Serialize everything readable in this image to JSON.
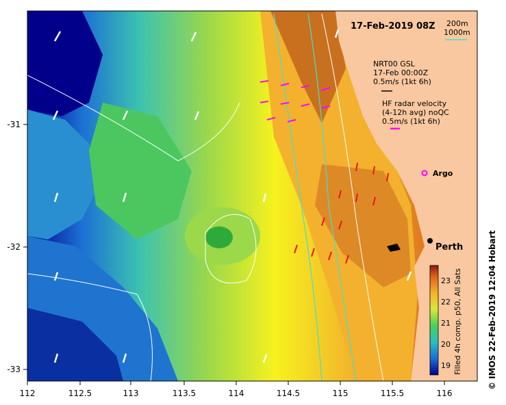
{
  "map": {
    "date_title": "17-Feb-2019 08Z",
    "x_ticks": [
      "112",
      "112.5",
      "113",
      "113.5",
      "114",
      "114.5",
      "115",
      "115.5",
      "116"
    ],
    "y_ticks": [
      "-31",
      "-32",
      "-33"
    ],
    "legend": {
      "depth_200": "200m",
      "depth_1000": "1000m",
      "gsl_line1": "NRT00 GSL",
      "gsl_line2": "17-Feb 00:00Z",
      "gsl_line3": "0.5m/s (1kt 6h)",
      "hf_line1": "HF radar velocity",
      "hf_line2": "(4-12h avg) noQC",
      "hf_line3": "0.5m/s (1kt 6h)",
      "argo_label": "Argo",
      "city_label": "Perth"
    },
    "colorbar": {
      "ticks": [
        "23",
        "22",
        "21",
        "20",
        "19"
      ],
      "label": "Filled 4h comp. p50, All Sats"
    },
    "credit": "© IMOS 22-Feb-2019 12:04 Hobart",
    "colors": {
      "land": "#f9c8a0",
      "warm": "#d2691e",
      "cool": "#00008b",
      "hf_arrow": "#ff00ff",
      "depth_1000": "#40e0d0"
    }
  }
}
